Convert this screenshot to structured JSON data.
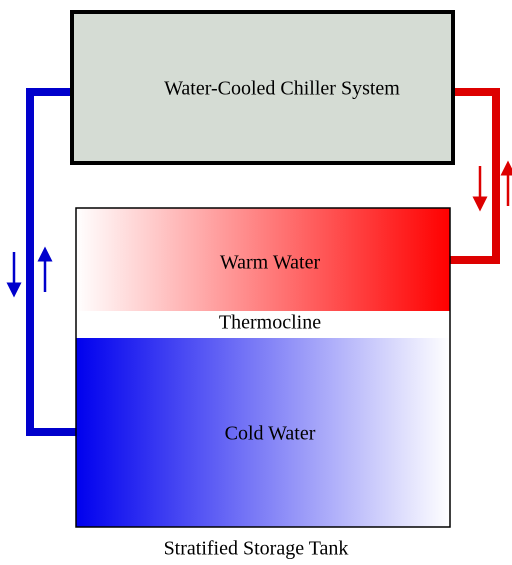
{
  "chiller": {
    "label": "Water-Cooled Chiller System"
  },
  "tank": {
    "warm": "Warm Water",
    "thermocline": "Thermocline",
    "cold": "Cold Water",
    "caption": "Stratified Storage Tank"
  }
}
